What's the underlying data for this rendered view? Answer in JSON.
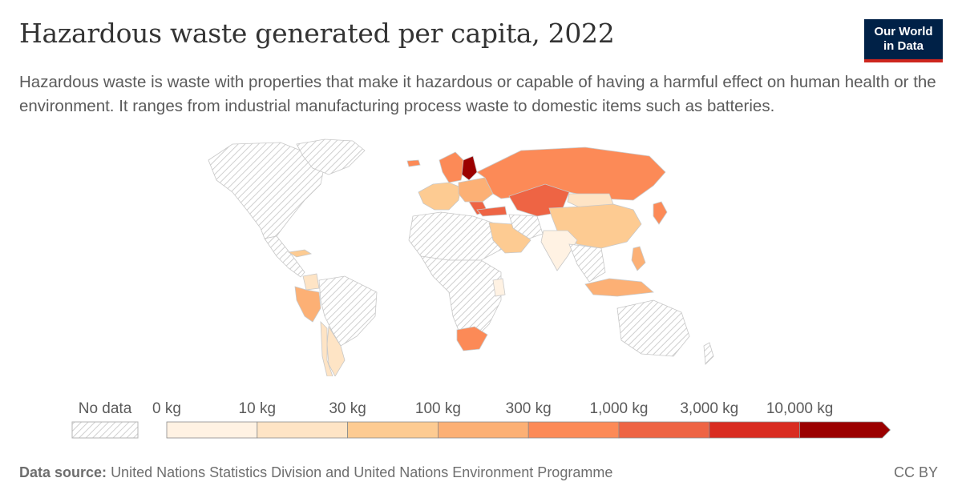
{
  "title": "Hazardous waste generated per capita, 2022",
  "subtitle": "Hazardous waste is waste with properties that make it hazardous or capable of having a harmful effect on human health or the environment. It ranges from industrial manufacturing process waste to domestic items such as batteries.",
  "logo": {
    "line1": "Our World",
    "line2": "in Data",
    "bg": "#002147",
    "accent": "#ce261e"
  },
  "legend": {
    "no_data_label": "No data",
    "labels": [
      "0 kg",
      "10 kg",
      "30 kg",
      "100 kg",
      "300 kg",
      "1,000 kg",
      "3,000 kg",
      "10,000 kg"
    ],
    "colors": [
      "#fff2e3",
      "#fee4c5",
      "#fdcb92",
      "#fcb075",
      "#fc8a57",
      "#ee6444",
      "#d92c21",
      "#9b0000"
    ]
  },
  "footer": {
    "source_label": "Data source:",
    "source_text": "United Nations Statistics Division and United Nations Environment Programme",
    "license": "CC BY"
  },
  "map_data": {
    "regions": [
      {
        "name": "North America",
        "bin": -1
      },
      {
        "name": "Greenland",
        "bin": -1
      },
      {
        "name": "Central America",
        "bin": -1
      },
      {
        "name": "Cuba",
        "bin": 2
      },
      {
        "name": "Ecuador and Peru",
        "bin": 3
      },
      {
        "name": "Colombia",
        "bin": 1
      },
      {
        "name": "Brazil",
        "bin": -1
      },
      {
        "name": "Argentina",
        "bin": 1
      },
      {
        "name": "Chile",
        "bin": 1
      },
      {
        "name": "Iceland",
        "bin": 4
      },
      {
        "name": "Western Europe",
        "bin": 2
      },
      {
        "name": "Scandinavia",
        "bin": 4
      },
      {
        "name": "Finland",
        "bin": 7
      },
      {
        "name": "Eastern Europe",
        "bin": 3
      },
      {
        "name": "Balkans",
        "bin": 5
      },
      {
        "name": "Turkey",
        "bin": 5
      },
      {
        "name": "Russia",
        "bin": 4
      },
      {
        "name": "Kazakhstan",
        "bin": 5
      },
      {
        "name": "Mongolia",
        "bin": 1
      },
      {
        "name": "China",
        "bin": 2
      },
      {
        "name": "North Africa",
        "bin": -1
      },
      {
        "name": "Sub-Saharan Africa",
        "bin": -1
      },
      {
        "name": "Tanzania",
        "bin": 0
      },
      {
        "name": "South Africa",
        "bin": 4
      },
      {
        "name": "Arabian Peninsula",
        "bin": 2
      },
      {
        "name": "Iran",
        "bin": -1
      },
      {
        "name": "India",
        "bin": 0
      },
      {
        "name": "Southeast Asia",
        "bin": -1
      },
      {
        "name": "Philippines",
        "bin": 3
      },
      {
        "name": "Indonesia",
        "bin": 3
      },
      {
        "name": "Japan",
        "bin": 4
      },
      {
        "name": "Australia",
        "bin": -1
      },
      {
        "name": "New Zealand",
        "bin": -1
      }
    ]
  }
}
